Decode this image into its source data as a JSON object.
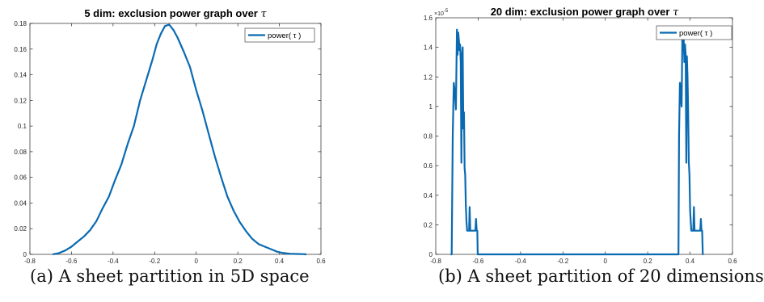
{
  "chart_data": [
    {
      "type": "line",
      "title_prefix": "5 dim: exclusion power graph over ",
      "title_symbol": "τ",
      "xlabel": "",
      "ylabel": "",
      "xlim": [
        -0.8,
        0.6
      ],
      "ylim": [
        0,
        0.18
      ],
      "x_ticks": [
        "-0.8",
        "-0.6",
        "-0.4",
        "-0.2",
        "0",
        "0.2",
        "0.4",
        "0.6"
      ],
      "y_ticks": [
        "0",
        "0.02",
        "0.04",
        "0.06",
        "0.08",
        "0.1",
        "0.12",
        "0.14",
        "0.16",
        "0.18"
      ],
      "y_exponent": "",
      "grid": false,
      "legend_position": "top-right",
      "color": "#0a6ab1",
      "series": [
        {
          "name": "power( τ )",
          "x": [
            -0.69,
            -0.66,
            -0.63,
            -0.6,
            -0.57,
            -0.54,
            -0.51,
            -0.48,
            -0.45,
            -0.42,
            -0.39,
            -0.36,
            -0.33,
            -0.3,
            -0.27,
            -0.24,
            -0.21,
            -0.19,
            -0.17,
            -0.15,
            -0.13,
            -0.11,
            -0.09,
            -0.06,
            -0.03,
            0.0,
            0.03,
            0.06,
            0.09,
            0.12,
            0.15,
            0.18,
            0.21,
            0.24,
            0.27,
            0.3,
            0.33,
            0.36,
            0.39,
            0.42,
            0.45,
            0.48,
            0.51,
            0.53
          ],
          "y": [
            0.0,
            0.001,
            0.003,
            0.006,
            0.01,
            0.014,
            0.019,
            0.026,
            0.036,
            0.045,
            0.058,
            0.07,
            0.086,
            0.1,
            0.12,
            0.136,
            0.152,
            0.164,
            0.172,
            0.178,
            0.179,
            0.175,
            0.169,
            0.158,
            0.146,
            0.128,
            0.112,
            0.094,
            0.076,
            0.06,
            0.045,
            0.034,
            0.025,
            0.018,
            0.012,
            0.008,
            0.006,
            0.004,
            0.002,
            0.001,
            0.0005,
            0.0003,
            0.0002,
            0.0
          ]
        }
      ]
    },
    {
      "type": "line",
      "title_prefix": "20 dim: exclusion power graph over ",
      "title_symbol": "τ",
      "xlabel": "",
      "ylabel": "",
      "xlim": [
        -0.8,
        0.6
      ],
      "ylim": [
        0,
        1.6
      ],
      "x_ticks": [
        "-0.8",
        "-0.6",
        "-0.4",
        "-0.2",
        "0",
        "0.2",
        "0.4",
        "0.6"
      ],
      "y_ticks": [
        "0",
        "0.2",
        "0.4",
        "0.6",
        "0.8",
        "1",
        "1.2",
        "1.4",
        "1.6"
      ],
      "y_exponent_base": "×10",
      "y_exponent_power": "-5",
      "grid": false,
      "legend_position": "top-right",
      "color": "#0a6ab1",
      "series": [
        {
          "name": "power( τ )",
          "x": [
            -0.73,
            -0.725,
            -0.72,
            -0.715,
            -0.71,
            -0.705,
            -0.7,
            -0.697,
            -0.694,
            -0.691,
            -0.688,
            -0.685,
            -0.682,
            -0.679,
            -0.676,
            -0.673,
            -0.67,
            -0.667,
            -0.664,
            -0.661,
            -0.658,
            -0.655,
            -0.652,
            -0.649,
            -0.646,
            -0.643,
            -0.64,
            -0.637,
            -0.634,
            -0.631,
            -0.628,
            -0.625,
            -0.622,
            -0.619,
            -0.616,
            -0.613,
            -0.61,
            -0.607,
            -0.604,
            -0.602,
            -0.6,
            0.0,
            0.345,
            0.348,
            0.352,
            0.356,
            0.36,
            0.364,
            0.367,
            0.37,
            0.373,
            0.376,
            0.379,
            0.382,
            0.385,
            0.388,
            0.391,
            0.394,
            0.397,
            0.4,
            0.403,
            0.406,
            0.409,
            0.412,
            0.415,
            0.418,
            0.421,
            0.424,
            0.427,
            0.43,
            0.433,
            0.436,
            0.439,
            0.442,
            0.445,
            0.448,
            0.451,
            0.454,
            0.457,
            0.46,
            0.462
          ],
          "y": [
            0,
            0,
            0.8,
            1.16,
            1.1,
            0.98,
            1.52,
            1.35,
            1.5,
            1.45,
            1.38,
            1.42,
            1.3,
            0.62,
            1.34,
            1.4,
            0.85,
            0.96,
            0.58,
            0.54,
            0.33,
            0.22,
            0.16,
            0.16,
            0.16,
            0.16,
            0.32,
            0.16,
            0.16,
            0.16,
            0.16,
            0.16,
            0.16,
            0.16,
            0.16,
            0.16,
            0.24,
            0.16,
            0.16,
            0.0,
            0.0,
            0.0,
            0.0,
            0.8,
            1.16,
            1.08,
            1.0,
            1.52,
            1.38,
            1.45,
            1.3,
            1.42,
            1.35,
            0.62,
            1.34,
            1.2,
            0.96,
            0.62,
            0.54,
            0.3,
            0.22,
            0.16,
            0.16,
            0.16,
            0.16,
            0.32,
            0.16,
            0.16,
            0.16,
            0.16,
            0.16,
            0.16,
            0.16,
            0.16,
            0.16,
            0.16,
            0.24,
            0.16,
            0.16,
            0.0,
            0.0
          ]
        }
      ]
    }
  ],
  "captions": {
    "a": "(a) A sheet partition in 5D space",
    "b": "(b) A sheet partition of 20 dimensions"
  }
}
